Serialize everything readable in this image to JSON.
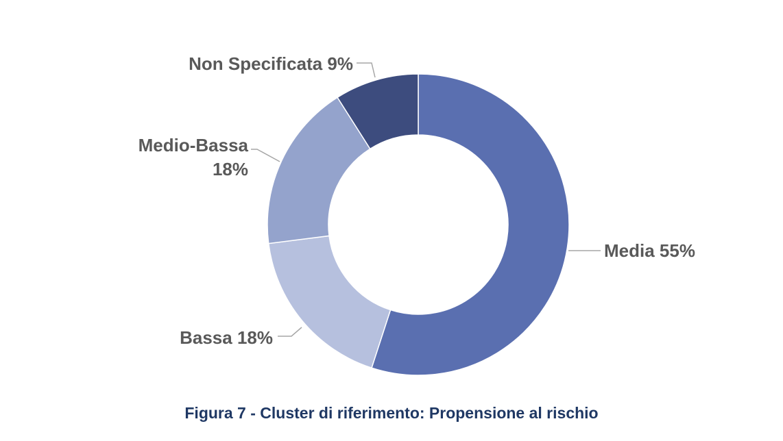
{
  "chart_data": {
    "type": "pie",
    "subtype": "donut",
    "title": "",
    "slices": [
      {
        "label": "Media",
        "value": 55,
        "display": "Media 55%",
        "color": "#5a6fb0"
      },
      {
        "label": "Bassa",
        "value": 18,
        "display": "Bassa 18%",
        "color": "#b6c0de"
      },
      {
        "label": "Medio-Bassa",
        "value": 18,
        "display_lines": [
          "Medio-Bassa",
          "18%"
        ],
        "color": "#94a3cc"
      },
      {
        "label": "Non Specificata",
        "value": 9,
        "display": "Non Specificata 9%",
        "color": "#3d4c7e"
      }
    ],
    "legend": "none",
    "data_labels": "outside with leader lines"
  },
  "caption": "Figura 7 - Cluster di riferimento: Propensione al rischio"
}
